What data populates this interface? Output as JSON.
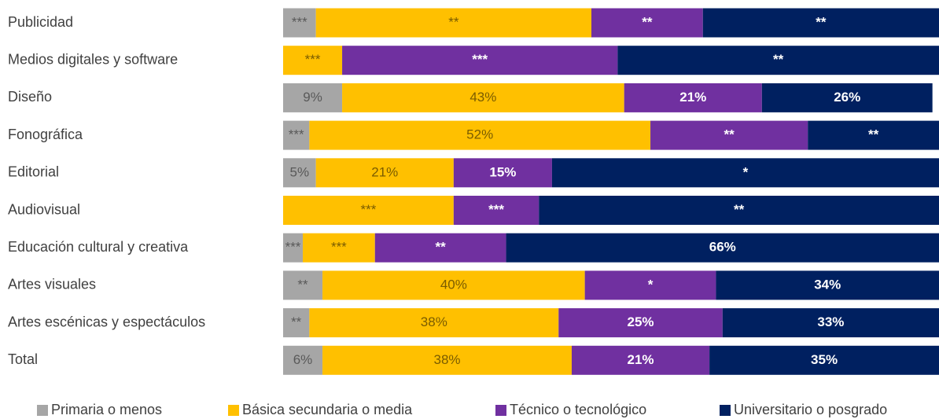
{
  "chart_data": {
    "type": "stacked-barh",
    "categories": [
      "Publicidad",
      "Medios digitales y software",
      "Diseño",
      "Fonográfica",
      "Editorial",
      "Audiovisual",
      "Educación cultural y creativa",
      "Artes visuales",
      "Artes escénicas y espectáculos",
      "Total"
    ],
    "xlim": [
      0,
      100
    ],
    "legend": "bottom",
    "series": [
      {
        "name": "Primaria o menos",
        "color": "#a6a6a6",
        "label_color": "#595959",
        "values": [
          5,
          0,
          9,
          4,
          5,
          0,
          3,
          6,
          4,
          6
        ],
        "value_labels": [
          "***",
          null,
          "9%",
          "***",
          "5%",
          null,
          "***",
          "**",
          "**",
          "6%"
        ]
      },
      {
        "name": "Básica secundaria o media",
        "color": "#ffc000",
        "label_color": "#7a5c00",
        "values": [
          42,
          9,
          43,
          52,
          21,
          26,
          11,
          40,
          38,
          38
        ],
        "value_labels": [
          "**",
          "***",
          "43%",
          "52%",
          "21%",
          "***",
          "***",
          "40%",
          "38%",
          "38%"
        ]
      },
      {
        "name": "Técnico o tecnológico",
        "color": "#7030a0",
        "label_color": "#ffffff",
        "values": [
          17,
          42,
          21,
          24,
          15,
          13,
          20,
          20,
          25,
          21
        ],
        "value_labels": [
          "**",
          "***",
          "21%",
          "**",
          "15%",
          "***",
          "**",
          "*",
          "25%",
          "21%"
        ]
      },
      {
        "name": "Universitario o posgrado",
        "color": "#002060",
        "label_color": "#ffffff",
        "values": [
          36,
          49,
          26,
          20,
          59,
          61,
          66,
          34,
          33,
          35
        ],
        "value_labels": [
          "**",
          "**",
          "26%",
          "**",
          "*",
          "**",
          "66%",
          "34%",
          "33%",
          "35%"
        ]
      }
    ]
  }
}
